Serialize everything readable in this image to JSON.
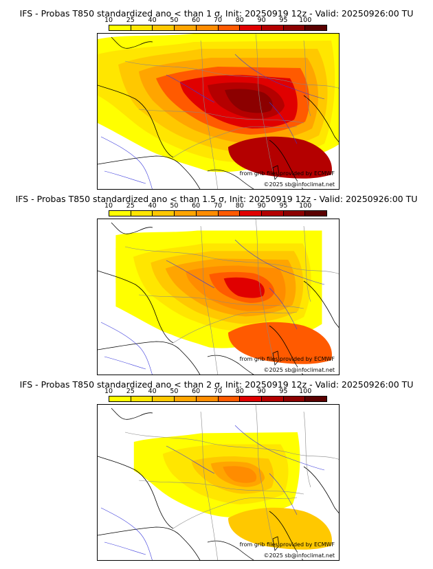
{
  "panels": [
    {
      "title": "IFS - Probas T850  standardized ano < than 1 σ, Init: 20250919 12z - Valid: 20250926:00 TU",
      "level": 3,
      "credit_source": "from grib files provided by ECMWF",
      "credit_copyright": "©2025 sb@infoclimat.net"
    },
    {
      "title": "IFS - Probas T850  standardized ano < than 1.5 σ, Init: 20250919 12z - Valid: 20250926:00 TU",
      "level": 2,
      "credit_source": "from grib files provided by ECMWF",
      "credit_copyright": "©2025 sb@infoclimat.net"
    },
    {
      "title": "IFS - Probas T850  standardized ano < than 2 σ, Init: 20250919 12z - Valid: 20250926:00 TU",
      "level": 1,
      "credit_source": "from grib files provided by ECMWF",
      "credit_copyright": "©2025 sb@infoclimat.net"
    }
  ],
  "colorbar": {
    "ticks": [
      "10",
      "25",
      "40",
      "50",
      "60",
      "70",
      "80",
      "90",
      "95",
      "100"
    ],
    "colors": [
      "#ffff00",
      "#ffe600",
      "#ffc800",
      "#ffa500",
      "#ff8c00",
      "#ff5a00",
      "#e00000",
      "#b40000",
      "#8c0000",
      "#5a0000"
    ]
  },
  "map_colors": {
    "sea_outline": "#000000",
    "rivers": "#3a3adc",
    "borders": "#888888"
  }
}
